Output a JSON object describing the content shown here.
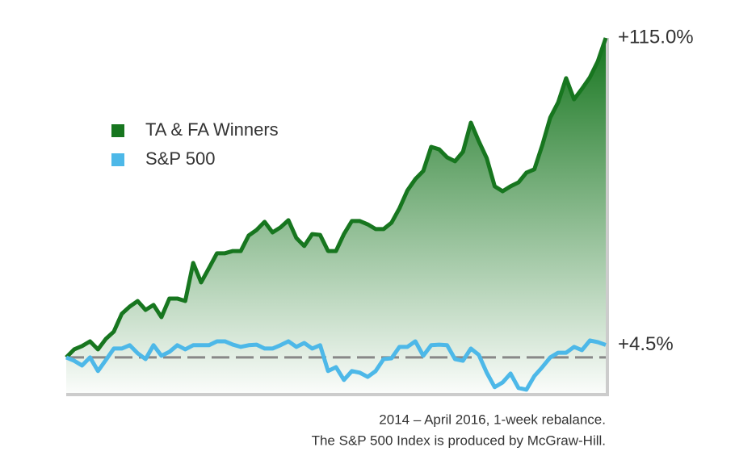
{
  "chart_data": {
    "type": "line",
    "series": [
      {
        "name": "TA & FA Winners",
        "color": "#17761f",
        "end_label": "+115.0%",
        "values": [
          0,
          2.9,
          4.1,
          5.8,
          2.9,
          6.7,
          9.3,
          15.7,
          18.3,
          20.3,
          17.1,
          18.9,
          14.5,
          21.2,
          21.2,
          20.3,
          34,
          27,
          32.2,
          37.5,
          37.5,
          38.3,
          38.3,
          43.9,
          45.9,
          48.8,
          45,
          46.8,
          49.4,
          43,
          40.1,
          44.4,
          44.1,
          38.3,
          38.3,
          44.4,
          49.1,
          49.1,
          47.9,
          46.2,
          46.2,
          48.5,
          53.7,
          60.1,
          64.2,
          67.1,
          75.8,
          74.9,
          72,
          70.6,
          74,
          84.5,
          77.8,
          71.7,
          61.6,
          59.8,
          61.6,
          63,
          66.5,
          67.7,
          76.4,
          86.3,
          91.8,
          100.5,
          92.9,
          96.7,
          100.8,
          106.6,
          115
        ]
      },
      {
        "name": "S&P 500",
        "color": "#4db8e8",
        "end_label": "+4.5%",
        "values": [
          0,
          -1.2,
          -2.9,
          0,
          -4.9,
          -0.9,
          3.2,
          3.2,
          4.4,
          1.5,
          -0.6,
          4.4,
          0.6,
          2,
          4.4,
          2.9,
          4.4,
          4.4,
          4.4,
          5.8,
          5.8,
          4.6,
          3.8,
          4.4,
          4.6,
          3.2,
          3.2,
          4.4,
          5.8,
          3.8,
          5.2,
          3.2,
          4.4,
          -4.9,
          -3.5,
          -8.1,
          -4.9,
          -5.5,
          -7,
          -4.9,
          -0.6,
          -0.3,
          3.8,
          3.8,
          5.8,
          0.6,
          4.4,
          4.6,
          4.4,
          -0.6,
          -1.2,
          3.2,
          0.9,
          -5.5,
          -10.7,
          -9,
          -5.8,
          -11,
          -11.6,
          -6.7,
          -3.5,
          0,
          1.7,
          1.7,
          3.8,
          2.6,
          6.1,
          5.5,
          4.5
        ]
      }
    ],
    "ylim": [
      -12.8,
      115
    ],
    "footnote": [
      "2014 – April 2016, 1-week rebalance.",
      "The S&P 500 Index is produced by McGraw-Hill."
    ]
  }
}
